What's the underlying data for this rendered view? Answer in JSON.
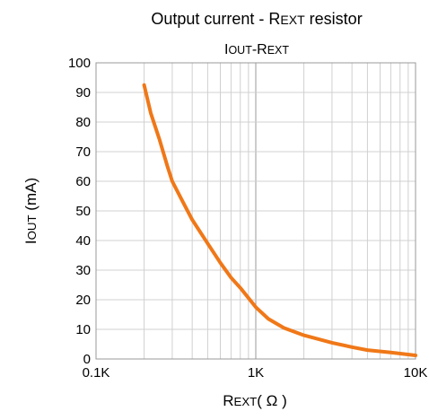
{
  "chart_data": {
    "type": "line",
    "title": {
      "main": "Output current - R",
      "sc": "EXT",
      "rest": " resistor"
    },
    "subtitle": {
      "a": "I",
      "a_sc": "OUT",
      "b": "-R",
      "b_sc": "EXT"
    },
    "xlabel": {
      "main": "R",
      "sc": "EXT",
      "rest": "( Ω )"
    },
    "ylabel": {
      "main": "I",
      "sc": "OUT",
      "rest": " (mA)"
    },
    "x_scale": "log",
    "xlim": [
      100,
      10000
    ],
    "ylim": [
      0,
      100
    ],
    "x_ticks": [
      {
        "value": 100,
        "label": "0.1K"
      },
      {
        "value": 1000,
        "label": "1K"
      },
      {
        "value": 10000,
        "label": "10K"
      }
    ],
    "y_ticks": [
      {
        "value": 0,
        "label": "0"
      },
      {
        "value": 10,
        "label": "10"
      },
      {
        "value": 20,
        "label": "20"
      },
      {
        "value": 30,
        "label": "30"
      },
      {
        "value": 40,
        "label": "40"
      },
      {
        "value": 50,
        "label": "50"
      },
      {
        "value": 60,
        "label": "60"
      },
      {
        "value": 70,
        "label": "70"
      },
      {
        "value": 80,
        "label": "80"
      },
      {
        "value": 90,
        "label": "90"
      },
      {
        "value": 100,
        "label": "100"
      }
    ],
    "grid": true,
    "legend": "none",
    "series": [
      {
        "color": "#f07818",
        "x": [
          200,
          220,
          250,
          280,
          300,
          350,
          400,
          500,
          600,
          700,
          800,
          1000,
          1200,
          1500,
          2000,
          3000,
          4000,
          5000,
          7000,
          10000
        ],
        "y": [
          92.5,
          83,
          74,
          65,
          60,
          53,
          47,
          39,
          32.5,
          27.5,
          24,
          17.5,
          13.5,
          10.5,
          8,
          5.5,
          4,
          3,
          2.2,
          1.2
        ]
      }
    ]
  }
}
